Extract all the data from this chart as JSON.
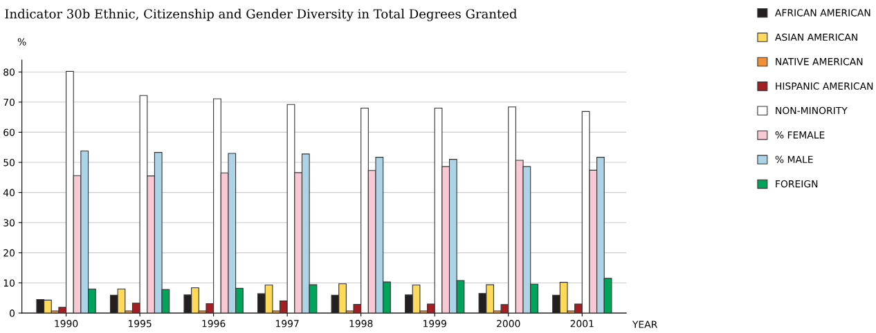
{
  "chart_data": {
    "type": "bar",
    "title": "Indicator 30b Ethnic, Citizenship and Gender Diversity in Total Degrees Granted",
    "ylabel": "%",
    "xlabel": "YEAR",
    "categories": [
      "1990",
      "1995",
      "1996",
      "1997",
      "1998",
      "1999",
      "2000",
      "2001"
    ],
    "series": [
      {
        "name": "AFRICAN AMERICAN",
        "color": "#231f20",
        "values": [
          4.5,
          5.9,
          6.0,
          6.4,
          5.9,
          6.0,
          6.5,
          5.9
        ]
      },
      {
        "name": "ASIAN AMERICAN",
        "color": "#ffd95a",
        "values": [
          4.3,
          8.0,
          8.4,
          9.3,
          9.7,
          9.3,
          9.4,
          10.2
        ]
      },
      {
        "name": "NATIVE AMERICAN",
        "color": "#f0913a",
        "values": [
          0.7,
          0.7,
          0.7,
          0.7,
          0.7,
          0.7,
          0.7,
          0.7
        ]
      },
      {
        "name": "HISPANIC AMERICAN",
        "color": "#a31f24",
        "values": [
          1.9,
          3.3,
          3.1,
          4.0,
          2.9,
          3.0,
          2.8,
          3.0
        ]
      },
      {
        "name": "NON-MINORITY",
        "color": "#ffffff",
        "values": [
          80.2,
          72.2,
          71.1,
          69.2,
          68.0,
          68.0,
          68.4,
          66.9
        ]
      },
      {
        "name": "% FEMALE",
        "color": "#f8c8d4",
        "values": [
          45.6,
          45.5,
          46.5,
          46.6,
          47.3,
          48.6,
          50.7,
          47.4
        ]
      },
      {
        "name": "% MALE",
        "color": "#acd4e6",
        "values": [
          53.8,
          53.3,
          53.0,
          52.8,
          51.7,
          51.0,
          48.6,
          51.7
        ]
      },
      {
        "name": "FOREIGN",
        "color": "#00a35a",
        "values": [
          8.0,
          7.8,
          8.2,
          9.4,
          10.3,
          10.8,
          9.6,
          11.5
        ]
      }
    ],
    "ylim": [
      0,
      84
    ],
    "yticks": [
      0,
      10,
      20,
      30,
      40,
      50,
      60,
      70,
      80
    ],
    "grid": "y",
    "legend": "right"
  }
}
